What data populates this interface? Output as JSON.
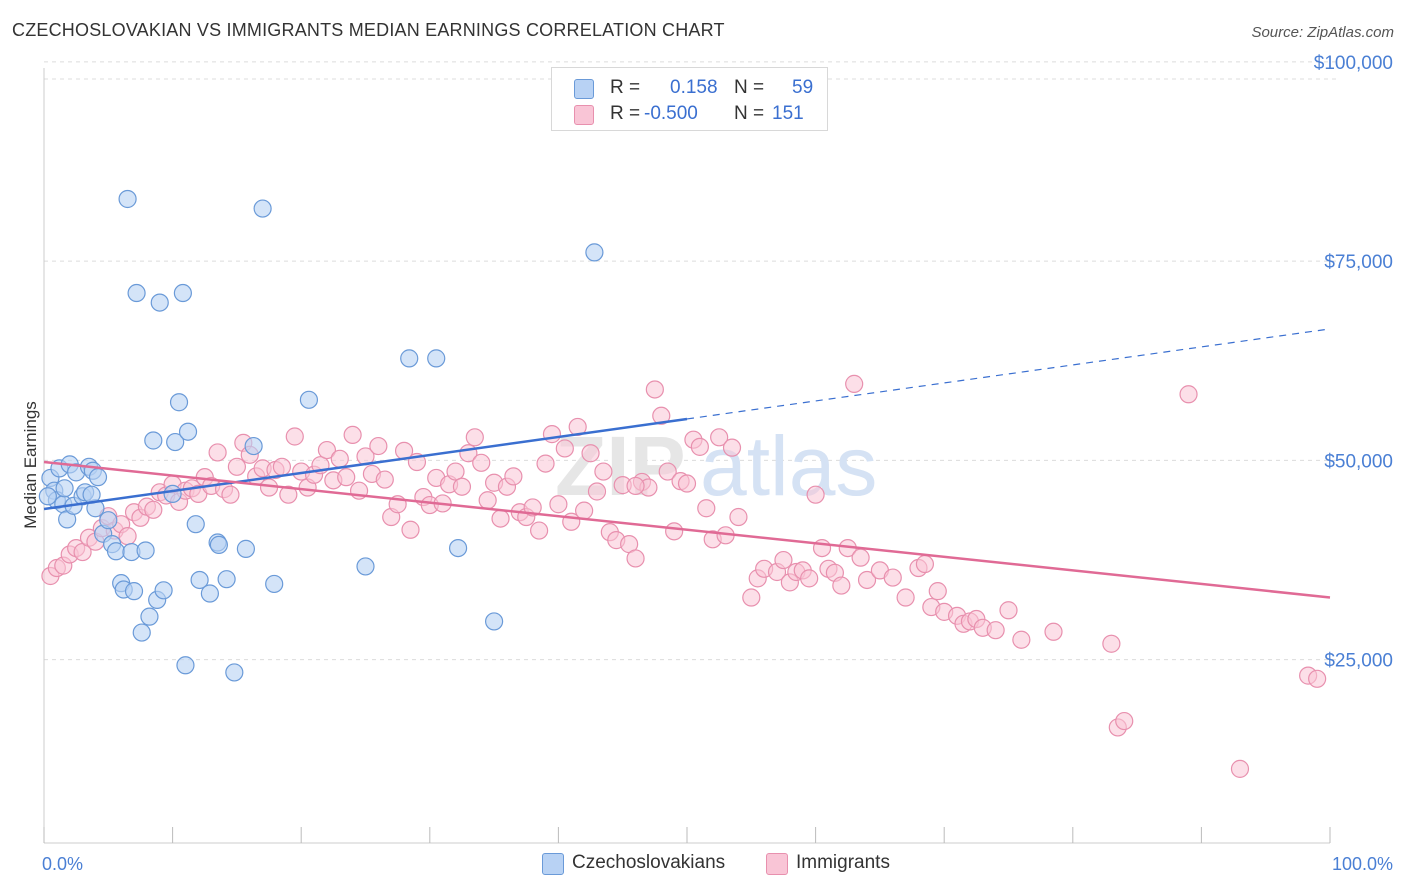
{
  "title": "CZECHOSLOVAKIAN VS IMMIGRANTS MEDIAN EARNINGS CORRELATION CHART",
  "source": "Source: ZipAtlas.com",
  "watermark": {
    "zip": "ZIP",
    "atlas": "atlas"
  },
  "legend": {
    "rows": [
      {
        "r_label": "R =",
        "r_value": "0.158",
        "n_label": "N =",
        "n_value": "59"
      },
      {
        "r_label": "R =",
        "r_value": "-0.500",
        "n_label": "N =",
        "n_value": "151"
      }
    ]
  },
  "bottom_legend": [
    "Czechoslovakians",
    "Immigrants"
  ],
  "colors": {
    "blue_fill": "#b8d2f4",
    "blue_stroke": "#6a9ad8",
    "blue_line": "#3a6fd0",
    "pink_fill": "#f9c5d6",
    "pink_stroke": "#e890ae",
    "pink_line": "#e06a95",
    "grid": "#dcdcdc",
    "axis_tick": "#4a7fd4"
  },
  "chart_data": {
    "type": "scatter",
    "title": "CZECHOSLOVAKIAN VS IMMIGRANTS MEDIAN EARNINGS CORRELATION CHART",
    "xlabel": "",
    "ylabel": "Median Earnings",
    "xlim": [
      0,
      100
    ],
    "ylim": [
      2000,
      104000
    ],
    "x_tick_labels": [
      "0.0%",
      "100.0%"
    ],
    "y_ticks": [
      25000,
      50000,
      75000,
      100000
    ],
    "y_tick_labels": [
      "$25,000",
      "$50,000",
      "$75,000",
      "$100,000"
    ],
    "grid": true,
    "legend_position": "top-center",
    "series": [
      {
        "name": "Czechoslovakians",
        "color": "#b8d2f4",
        "points": [
          [
            0.5,
            47800
          ],
          [
            0.8,
            46200
          ],
          [
            1.0,
            45000
          ],
          [
            1.2,
            49000
          ],
          [
            1.5,
            44500
          ],
          [
            1.8,
            42600
          ],
          [
            2.0,
            49500
          ],
          [
            2.3,
            44300
          ],
          [
            2.5,
            48500
          ],
          [
            3.0,
            45500
          ],
          [
            3.2,
            46000
          ],
          [
            3.5,
            49200
          ],
          [
            3.8,
            48700
          ],
          [
            4.0,
            44000
          ],
          [
            4.2,
            47900
          ],
          [
            4.6,
            40800
          ],
          [
            5.0,
            42500
          ],
          [
            5.3,
            39500
          ],
          [
            5.6,
            38600
          ],
          [
            6.0,
            34600
          ],
          [
            6.2,
            33800
          ],
          [
            6.5,
            82800
          ],
          [
            6.8,
            38500
          ],
          [
            7.0,
            33600
          ],
          [
            7.2,
            71000
          ],
          [
            7.6,
            28400
          ],
          [
            7.9,
            38700
          ],
          [
            8.2,
            30400
          ],
          [
            8.5,
            52500
          ],
          [
            8.8,
            32500
          ],
          [
            9.0,
            69800
          ],
          [
            9.3,
            33700
          ],
          [
            10.0,
            45800
          ],
          [
            10.2,
            52300
          ],
          [
            10.5,
            57300
          ],
          [
            10.8,
            71000
          ],
          [
            11.0,
            24300
          ],
          [
            11.2,
            53600
          ],
          [
            11.8,
            42000
          ],
          [
            12.1,
            35000
          ],
          [
            12.9,
            33300
          ],
          [
            13.5,
            39700
          ],
          [
            13.6,
            39400
          ],
          [
            14.2,
            35100
          ],
          [
            14.8,
            23400
          ],
          [
            15.7,
            38900
          ],
          [
            16.3,
            51800
          ],
          [
            17.0,
            81600
          ],
          [
            17.9,
            34500
          ],
          [
            20.6,
            57600
          ],
          [
            25.0,
            36700
          ],
          [
            28.4,
            62800
          ],
          [
            30.5,
            62800
          ],
          [
            32.2,
            39000
          ],
          [
            35.0,
            29800
          ],
          [
            42.8,
            76100
          ],
          [
            0.3,
            45500
          ],
          [
            1.6,
            46500
          ],
          [
            3.7,
            45700
          ]
        ],
        "trend": {
          "x0": 0,
          "y0": 43900,
          "x1": 50,
          "y1": 55200,
          "dashed_to_x": 100,
          "dashed_to_y": 66500
        }
      },
      {
        "name": "Immigrants",
        "color": "#f9c5d6",
        "points": [
          [
            0.5,
            35500
          ],
          [
            1.0,
            36500
          ],
          [
            1.5,
            36800
          ],
          [
            2.0,
            38200
          ],
          [
            2.5,
            39000
          ],
          [
            3.0,
            38500
          ],
          [
            3.5,
            40300
          ],
          [
            4.0,
            39800
          ],
          [
            4.5,
            41500
          ],
          [
            5.0,
            43000
          ],
          [
            5.5,
            41200
          ],
          [
            6.0,
            42000
          ],
          [
            6.5,
            40500
          ],
          [
            7.0,
            43500
          ],
          [
            7.5,
            42800
          ],
          [
            8.0,
            44200
          ],
          [
            8.5,
            43800
          ],
          [
            9.0,
            46000
          ],
          [
            9.5,
            45600
          ],
          [
            10.0,
            47000
          ],
          [
            10.5,
            44800
          ],
          [
            11.0,
            46200
          ],
          [
            11.5,
            46500
          ],
          [
            12.0,
            45800
          ],
          [
            12.5,
            47900
          ],
          [
            13.0,
            46800
          ],
          [
            13.5,
            51000
          ],
          [
            14.0,
            46400
          ],
          [
            14.5,
            45700
          ],
          [
            15.0,
            49200
          ],
          [
            15.5,
            52200
          ],
          [
            16.0,
            50700
          ],
          [
            16.5,
            48000
          ],
          [
            17.0,
            49000
          ],
          [
            17.5,
            46600
          ],
          [
            18.0,
            48800
          ],
          [
            18.5,
            49200
          ],
          [
            19.0,
            45700
          ],
          [
            19.5,
            53000
          ],
          [
            20.0,
            48600
          ],
          [
            20.5,
            46600
          ],
          [
            21.0,
            48200
          ],
          [
            21.5,
            49400
          ],
          [
            22.0,
            51300
          ],
          [
            22.5,
            47500
          ],
          [
            23.0,
            50200
          ],
          [
            23.5,
            47900
          ],
          [
            24.0,
            53200
          ],
          [
            24.5,
            46200
          ],
          [
            25.0,
            50500
          ],
          [
            25.5,
            48300
          ],
          [
            26.0,
            51800
          ],
          [
            26.5,
            47600
          ],
          [
            27.0,
            42900
          ],
          [
            27.5,
            44500
          ],
          [
            28.0,
            51200
          ],
          [
            28.5,
            41300
          ],
          [
            29.0,
            49800
          ],
          [
            29.5,
            45400
          ],
          [
            30.0,
            44400
          ],
          [
            30.5,
            47800
          ],
          [
            31.0,
            44600
          ],
          [
            31.5,
            47000
          ],
          [
            32.0,
            48600
          ],
          [
            32.5,
            46700
          ],
          [
            33.0,
            50900
          ],
          [
            33.5,
            52900
          ],
          [
            34.0,
            49700
          ],
          [
            34.5,
            45000
          ],
          [
            35.0,
            47200
          ],
          [
            35.5,
            42700
          ],
          [
            36.0,
            46700
          ],
          [
            36.5,
            48000
          ],
          [
            37.0,
            43500
          ],
          [
            37.5,
            42900
          ],
          [
            38.0,
            44100
          ],
          [
            38.5,
            41200
          ],
          [
            39.0,
            49600
          ],
          [
            39.5,
            53300
          ],
          [
            40.0,
            44500
          ],
          [
            40.5,
            51500
          ],
          [
            41.0,
            42300
          ],
          [
            41.5,
            54200
          ],
          [
            42.0,
            43700
          ],
          [
            42.5,
            50900
          ],
          [
            43.0,
            46100
          ],
          [
            43.5,
            48600
          ],
          [
            44.0,
            41000
          ],
          [
            44.5,
            40000
          ],
          [
            45.0,
            46900
          ],
          [
            45.5,
            39500
          ],
          [
            46.0,
            37700
          ],
          [
            46.5,
            47300
          ],
          [
            47.0,
            46600
          ],
          [
            47.5,
            58900
          ],
          [
            48.0,
            55600
          ],
          [
            48.5,
            48600
          ],
          [
            49.0,
            41100
          ],
          [
            49.5,
            47400
          ],
          [
            50.0,
            47100
          ],
          [
            50.5,
            52600
          ],
          [
            51.0,
            51700
          ],
          [
            51.5,
            44000
          ],
          [
            52.0,
            40100
          ],
          [
            52.5,
            52900
          ],
          [
            53.0,
            40600
          ],
          [
            53.5,
            51600
          ],
          [
            54.0,
            42900
          ],
          [
            55.0,
            32800
          ],
          [
            55.5,
            35200
          ],
          [
            56.0,
            36400
          ],
          [
            57.0,
            36000
          ],
          [
            57.5,
            37500
          ],
          [
            58.0,
            34700
          ],
          [
            58.5,
            36000
          ],
          [
            59.0,
            36200
          ],
          [
            59.5,
            35200
          ],
          [
            60.0,
            45700
          ],
          [
            60.5,
            39000
          ],
          [
            61.0,
            36400
          ],
          [
            61.5,
            35900
          ],
          [
            62.0,
            34300
          ],
          [
            62.5,
            39000
          ],
          [
            63.0,
            59600
          ],
          [
            63.5,
            37800
          ],
          [
            64.0,
            35000
          ],
          [
            65.0,
            36200
          ],
          [
            66.0,
            35300
          ],
          [
            67.0,
            32800
          ],
          [
            68.0,
            36500
          ],
          [
            68.5,
            37000
          ],
          [
            69.0,
            31600
          ],
          [
            69.5,
            33600
          ],
          [
            70.0,
            31000
          ],
          [
            71.0,
            30500
          ],
          [
            71.5,
            29500
          ],
          [
            72.0,
            29800
          ],
          [
            72.5,
            30100
          ],
          [
            73.0,
            29000
          ],
          [
            74.0,
            28700
          ],
          [
            75.0,
            31200
          ],
          [
            76.0,
            27500
          ],
          [
            78.5,
            28500
          ],
          [
            83.0,
            27000
          ],
          [
            83.5,
            16500
          ],
          [
            84.0,
            17300
          ],
          [
            89.0,
            58300
          ],
          [
            93.0,
            11300
          ],
          [
            98.3,
            23000
          ],
          [
            99.0,
            22600
          ],
          [
            46.0,
            46800
          ]
        ],
        "trend": {
          "x0": 0,
          "y0": 49800,
          "x1": 100,
          "y1": 32800
        }
      }
    ]
  }
}
